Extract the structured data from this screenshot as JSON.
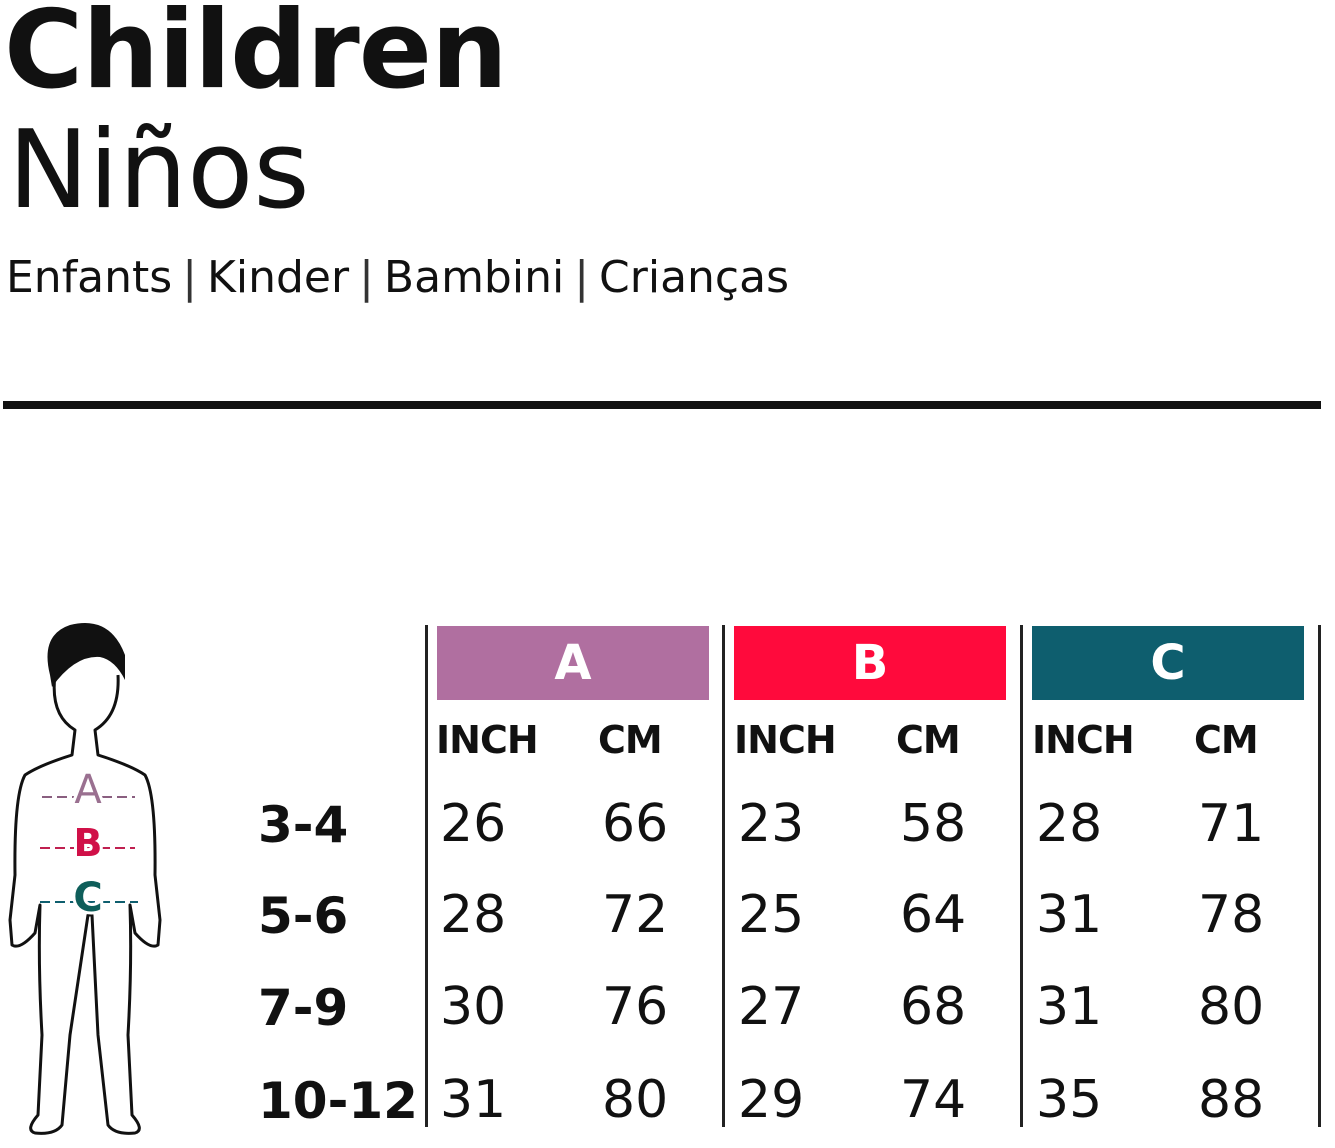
{
  "header": {
    "title": "Children",
    "subtitle": "Niños",
    "languages": [
      "Enfants",
      "Kinder",
      "Bambini",
      "Crianças"
    ],
    "separator": "|"
  },
  "figure": {
    "labels": [
      "A",
      "B",
      "C"
    ],
    "icon": "child-body-outline"
  },
  "table": {
    "groups": [
      {
        "label": "A",
        "color": "#b06fa0"
      },
      {
        "label": "B",
        "color": "#ff0a3c"
      },
      {
        "label": "C",
        "color": "#0e5e6e"
      }
    ],
    "units": [
      "INCH",
      "CM"
    ],
    "rows": [
      {
        "size": "3-4",
        "values": [
          "26",
          "66",
          "23",
          "58",
          "28",
          "71"
        ]
      },
      {
        "size": "5-6",
        "values": [
          "28",
          "72",
          "25",
          "64",
          "31",
          "78"
        ]
      },
      {
        "size": "7-9",
        "values": [
          "30",
          "76",
          "27",
          "68",
          "31",
          "80"
        ]
      },
      {
        "size": "10-12",
        "values": [
          "31",
          "80",
          "29",
          "74",
          "35",
          "88"
        ]
      }
    ]
  }
}
